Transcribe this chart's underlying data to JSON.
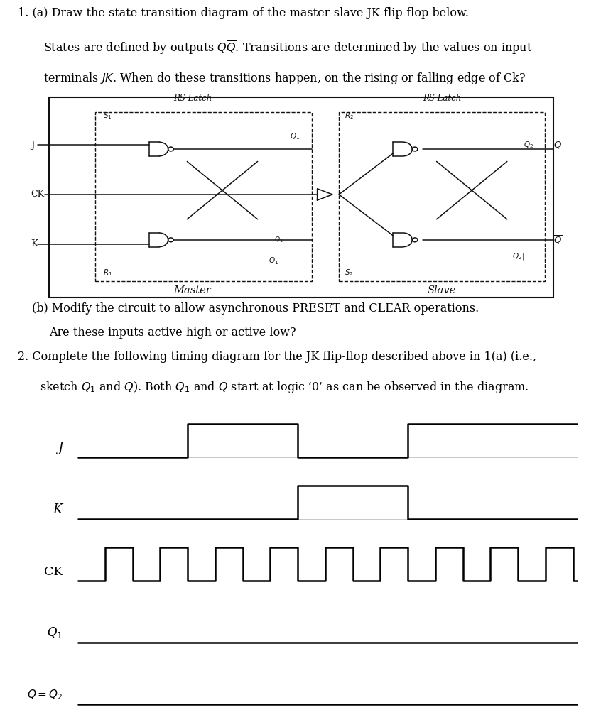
{
  "bg_color": "#f5f5f0",
  "page_bg": "#f8f8f5",
  "q1a_line1": "1. (a) Draw the state transition diagram of the master-slave JK flip-flop below.",
  "q1a_line2": "States are defined by outputs $Q\\overline{Q}$. Transitions are determined by the values on input",
  "q1a_line3": "terminals $JK$. When do these transitions happen, on the rising or falling edge of Ck?",
  "q1b_line1": "(b) Modify the circuit to allow asynchronous PRESET and CLEAR operations.",
  "q1b_line2": "Are these inputs active high or active low?",
  "q2_line1": "2. Complete the following timing diagram for the JK flip-flop described above in 1(a) (i.e.,",
  "q2_line2": "sketch $Q_1$ and $Q$). Both $Q_1$ and $Q$ start at logic ‘0’ as can be observed in the diagram.",
  "j_times": [
    0,
    0.22,
    0.22,
    0.44,
    0.44,
    0.66,
    0.66,
    1.0
  ],
  "j_vals": [
    0,
    0,
    1,
    1,
    0,
    0,
    1,
    1
  ],
  "k_times": [
    0,
    0.44,
    0.44,
    0.66,
    0.66,
    1.0
  ],
  "k_vals": [
    0,
    0,
    1,
    1,
    0,
    0
  ],
  "ck_times": [
    0,
    0.055,
    0.055,
    0.11,
    0.11,
    0.165,
    0.165,
    0.22,
    0.22,
    0.275,
    0.275,
    0.33,
    0.33,
    0.385,
    0.385,
    0.44,
    0.44,
    0.495,
    0.495,
    0.55,
    0.55,
    0.605,
    0.605,
    0.66,
    0.66,
    0.715,
    0.715,
    0.77,
    0.77,
    0.825,
    0.825,
    0.88,
    0.88,
    0.935,
    0.935,
    0.99,
    0.99,
    1.0
  ],
  "ck_vals": [
    0,
    0,
    1,
    1,
    0,
    0,
    1,
    1,
    0,
    0,
    1,
    1,
    0,
    0,
    1,
    1,
    0,
    0,
    1,
    1,
    0,
    0,
    1,
    1,
    0,
    0,
    1,
    1,
    0,
    0,
    1,
    1,
    0,
    0,
    1,
    1,
    0,
    0
  ],
  "q1s_times": [
    0,
    1.0
  ],
  "q1s_vals": [
    0,
    0
  ],
  "q_times": [
    0,
    1.0
  ],
  "q_vals": [
    0,
    0
  ],
  "signal_label_texts": [
    "J",
    "K",
    "CK",
    "Q_1",
    "Q=Q_2"
  ],
  "timing_lw": 1.8
}
